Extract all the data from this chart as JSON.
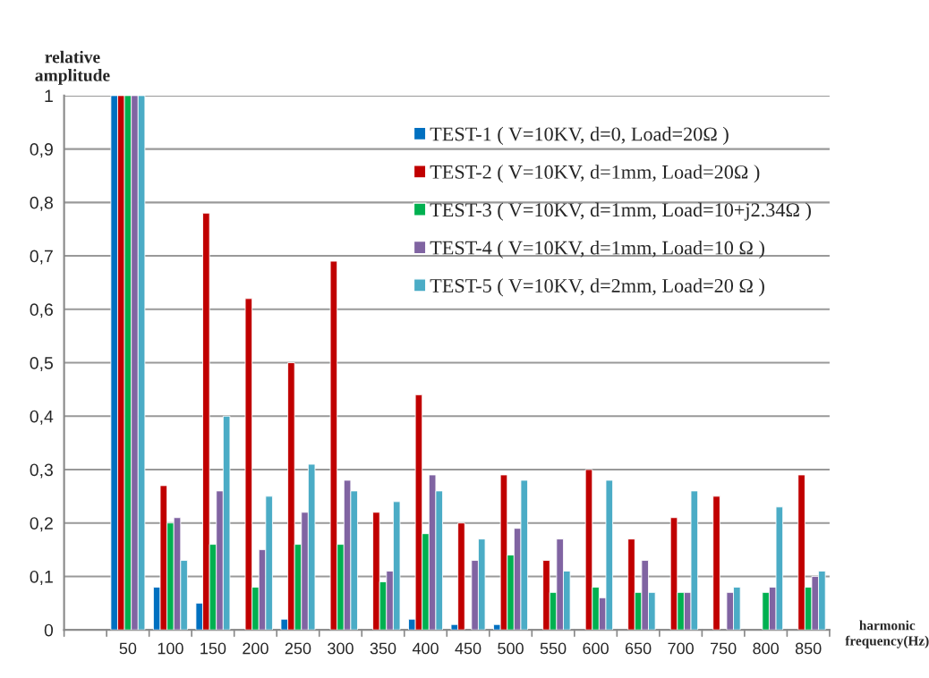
{
  "chart_data": {
    "type": "bar",
    "xlabel": "harmonic frequency(Hz)",
    "ylabel": "relative amplitude",
    "categories": [
      null,
      "50",
      "100",
      "150",
      "200",
      "250",
      "300",
      "350",
      "400",
      "450",
      "500",
      "550",
      "600",
      "650",
      "700",
      "750",
      "800",
      "850"
    ],
    "series": [
      {
        "name": "TEST-1 ( V=10KV, d=0, Load=20Ω )",
        "color": "#0070c0",
        "values": [
          null,
          1,
          0.08,
          0.05,
          null,
          0.02,
          null,
          null,
          0.02,
          0.01,
          0.01,
          null,
          null,
          null,
          null,
          null,
          null,
          null
        ]
      },
      {
        "name": "TEST-2 ( V=10KV, d=1mm, Load=20Ω )",
        "color": "#c00000",
        "values": [
          null,
          1,
          0.27,
          0.78,
          0.62,
          0.5,
          0.69,
          0.22,
          0.44,
          0.2,
          0.29,
          0.13,
          0.3,
          0.17,
          0.21,
          0.25,
          null,
          0.29
        ]
      },
      {
        "name": "TEST-3 ( V=10KV, d=1mm, Load=10+j2.34Ω )",
        "color": "#00b050",
        "values": [
          null,
          1,
          0.2,
          0.16,
          0.08,
          0.16,
          0.16,
          0.09,
          0.18,
          null,
          0.14,
          0.07,
          0.08,
          0.07,
          0.07,
          null,
          0.07,
          0.08
        ]
      },
      {
        "name": "TEST-4 ( V=10KV, d=1mm, Load=10 Ω )",
        "color": "#8064a2",
        "values": [
          null,
          1,
          0.21,
          0.26,
          0.15,
          0.22,
          0.28,
          0.11,
          0.29,
          0.13,
          0.19,
          0.17,
          0.06,
          0.13,
          0.07,
          0.07,
          0.08,
          0.1
        ]
      },
      {
        "name": "TEST-5 ( V=10KV, d=2mm, Load=20 Ω )",
        "color": "#4bacc6",
        "values": [
          null,
          1,
          0.13,
          0.4,
          0.25,
          0.31,
          0.26,
          0.24,
          0.26,
          0.17,
          0.28,
          0.11,
          0.28,
          0.07,
          0.26,
          0.08,
          0.23,
          0.11
        ]
      }
    ],
    "ylim": [
      0,
      1
    ],
    "yticks": [
      0,
      {
        "value": 0.1,
        "label": "0,1"
      },
      {
        "value": 0.2,
        "label": "0,2"
      },
      {
        "value": 0.3,
        "label": "0,3"
      },
      {
        "value": 0.4,
        "label": "0,4"
      },
      {
        "value": 0.5,
        "label": "0,5"
      },
      {
        "value": 0.6,
        "label": "0,6"
      },
      {
        "value": 0.7,
        "label": "0,7"
      },
      {
        "value": 0.8,
        "label": "0,8"
      },
      {
        "value": 0.9,
        "label": "0,9"
      },
      1
    ],
    "grid": "y",
    "legend": "top right"
  }
}
